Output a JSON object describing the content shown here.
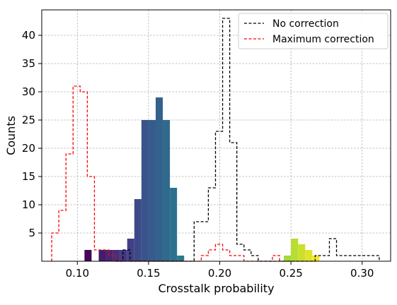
{
  "chart_data": {
    "type": "bar",
    "xlabel": "Crosstalk probability",
    "ylabel": "Counts",
    "xlim": [
      0.075,
      0.32
    ],
    "ylim": [
      0,
      44.5
    ],
    "xticks": [
      0.1,
      0.15,
      0.2,
      0.25,
      0.3
    ],
    "xtick_labels": [
      "0.10",
      "0.15",
      "0.20",
      "0.25",
      "0.30"
    ],
    "yticks": [
      5,
      10,
      15,
      20,
      25,
      30,
      35,
      40
    ],
    "ytick_labels": [
      "5",
      "10",
      "15",
      "20",
      "25",
      "30",
      "35",
      "40"
    ],
    "grid": true,
    "legend": "top-right",
    "histogram": {
      "bin_width": 0.005,
      "bins": [
        {
          "x": 0.1075,
          "y": 2
        },
        {
          "x": 0.1175,
          "y": 2
        },
        {
          "x": 0.1225,
          "y": 2
        },
        {
          "x": 0.1275,
          "y": 2
        },
        {
          "x": 0.1325,
          "y": 2
        },
        {
          "x": 0.1375,
          "y": 4
        },
        {
          "x": 0.1425,
          "y": 11
        },
        {
          "x": 0.1475,
          "y": 25
        },
        {
          "x": 0.1525,
          "y": 25
        },
        {
          "x": 0.1575,
          "y": 29
        },
        {
          "x": 0.1625,
          "y": 25
        },
        {
          "x": 0.1675,
          "y": 13
        },
        {
          "x": 0.1725,
          "y": 1
        },
        {
          "x": 0.2475,
          "y": 1
        },
        {
          "x": 0.2525,
          "y": 4
        },
        {
          "x": 0.2575,
          "y": 3
        },
        {
          "x": 0.2625,
          "y": 2
        },
        {
          "x": 0.2675,
          "y": 1
        }
      ]
    },
    "series": [
      {
        "name": "No correction",
        "color": "#000000",
        "style": "dashed-step",
        "edges": [
          0.127,
          0.132,
          0.137,
          0.142,
          0.147,
          0.152,
          0.157,
          0.162,
          0.167,
          0.172,
          0.177,
          0.182,
          0.187,
          0.192,
          0.197,
          0.202,
          0.207,
          0.212,
          0.217,
          0.222,
          0.227,
          0.232,
          0.237,
          0.242,
          0.247,
          0.252,
          0.257,
          0.262,
          0.267,
          0.272,
          0.277,
          0.282,
          0.287,
          0.292,
          0.297,
          0.302,
          0.307,
          0.312
        ],
        "values": [
          0,
          2,
          0,
          0,
          0,
          0,
          0,
          0,
          0,
          0,
          0,
          7,
          7,
          13,
          23,
          43,
          21,
          3,
          2,
          1,
          0,
          0,
          0,
          0,
          0,
          0,
          0,
          0,
          1,
          1,
          4,
          1,
          1,
          1,
          1,
          1,
          1
        ]
      },
      {
        "name": "Maximum correction",
        "color": "#ff0000",
        "style": "dashed-step",
        "edges": [
          0.082,
          0.087,
          0.092,
          0.097,
          0.102,
          0.107,
          0.112,
          0.117,
          0.122,
          0.127,
          0.132,
          0.137,
          0.142,
          0.147,
          0.152,
          0.157,
          0.162,
          0.167,
          0.172,
          0.177,
          0.182,
          0.187,
          0.192,
          0.197,
          0.202,
          0.207,
          0.212,
          0.217,
          0.222,
          0.227,
          0.232,
          0.237,
          0.242,
          0.247
        ],
        "values": [
          5,
          9,
          19,
          31,
          30,
          15,
          2,
          2,
          1,
          0,
          0,
          0,
          0,
          0,
          0,
          0,
          0,
          0,
          0,
          0,
          0,
          1,
          2,
          3,
          2,
          1,
          1,
          0,
          0,
          0,
          0,
          1,
          0
        ]
      }
    ],
    "colors": {
      "grid": "#b0b0b0",
      "frame": "#000000"
    }
  }
}
